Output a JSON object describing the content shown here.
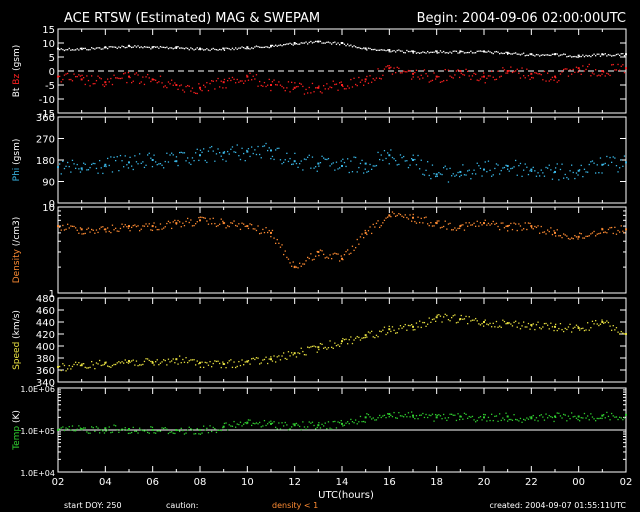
{
  "header": {
    "title": "ACE RTSW (Estimated) MAG & SWEPAM",
    "begin": "Begin: 2004-09-06 02:00:00UTC"
  },
  "footer": {
    "start_doy": "start DOY: 250",
    "caution": "caution:",
    "density_note": "density < 1",
    "created": "created: 2004-09-07 01:55:11UTC"
  },
  "colors": {
    "axis": "#ffffff",
    "bt": "#ffffff",
    "bz": "#ff2020",
    "phi": "#3ab8e8",
    "density": "#ff8c33",
    "speed": "#e8e040",
    "temp": "#30d030",
    "dash": "#ffffff"
  },
  "chart_data": {
    "type": "scatter",
    "xlabel": "UTC(hours)",
    "x_ticks": [
      "02",
      "04",
      "06",
      "08",
      "10",
      "12",
      "14",
      "16",
      "18",
      "20",
      "22",
      "00",
      "02"
    ],
    "xlim": [
      0,
      24
    ],
    "panels": [
      {
        "id": "mag",
        "ylabel_parts": [
          {
            "text": "Bt ",
            "color": "#ffffff"
          },
          {
            "text": "Bz",
            "color": "#ff2020"
          },
          {
            "text": " (gsm)",
            "color": "#ffffff"
          }
        ],
        "ylim": [
          -15,
          15
        ],
        "y_ticks": [
          "-15",
          "-10",
          "-5",
          "0",
          "5",
          "10",
          "15"
        ],
        "y_tick_values": [
          -15,
          -10,
          -5,
          0,
          5,
          10,
          15
        ],
        "scale": "linear",
        "reference_line": 0,
        "series": [
          {
            "name": "Bt",
            "color": "#ffffff",
            "x": [
              0,
              1,
              2,
              3,
              4,
              5,
              6,
              7,
              8,
              9,
              10,
              11,
              12,
              13,
              14,
              15,
              16,
              17,
              18,
              19,
              20,
              21,
              22,
              23,
              24
            ],
            "y": [
              8,
              8,
              8.5,
              9,
              8.5,
              8.5,
              8,
              8,
              8.5,
              9,
              10,
              10.5,
              10,
              8,
              7.5,
              7,
              7,
              7,
              7,
              6.5,
              6,
              6,
              5.5,
              6,
              6
            ]
          },
          {
            "name": "Bz",
            "color": "#ff2020",
            "x": [
              0,
              1,
              2,
              3,
              4,
              5,
              6,
              7,
              8,
              9,
              10,
              11,
              12,
              13,
              14,
              15,
              16,
              17,
              18,
              19,
              20,
              21,
              22,
              23,
              24
            ],
            "y": [
              -2,
              -3,
              -4,
              -2,
              -3,
              -5,
              -6,
              -4,
              -2,
              -5,
              -6,
              -6,
              -5,
              -3,
              1,
              -1,
              -2,
              0,
              -2,
              0,
              -1,
              -2,
              1,
              0,
              1
            ]
          }
        ]
      },
      {
        "id": "phi",
        "ylabel_parts": [
          {
            "text": "Phi",
            "color": "#3ab8e8"
          },
          {
            "text": " (gsm)",
            "color": "#ffffff"
          }
        ],
        "ylim": [
          0,
          360
        ],
        "y_ticks": [
          "0",
          "90",
          "180",
          "270",
          "360"
        ],
        "y_tick_values": [
          0,
          90,
          180,
          270,
          360
        ],
        "scale": "linear",
        "series": [
          {
            "name": "Phi",
            "color": "#3ab8e8",
            "x": [
              0,
              1,
              2,
              3,
              4,
              5,
              6,
              7,
              8,
              9,
              10,
              11,
              12,
              13,
              14,
              15,
              16,
              17,
              18,
              19,
              20,
              21,
              22,
              23,
              24
            ],
            "y": [
              150,
              145,
              160,
              170,
              180,
              175,
              200,
              210,
              215,
              220,
              175,
              165,
              155,
              165,
              200,
              180,
              120,
              130,
              140,
              155,
              140,
              130,
              135,
              160,
              170
            ]
          }
        ]
      },
      {
        "id": "density",
        "ylabel_parts": [
          {
            "text": "Density",
            "color": "#ff8c33"
          },
          {
            "text": " (/cm3)",
            "color": "#ffffff"
          }
        ],
        "ylim": [
          1,
          10
        ],
        "y_ticks": [
          "1",
          "10"
        ],
        "y_tick_values": [
          1,
          10
        ],
        "scale": "log",
        "series": [
          {
            "name": "Density",
            "color": "#ff8c33",
            "x": [
              0,
              1,
              2,
              3,
              4,
              5,
              6,
              7,
              8,
              9,
              10,
              11,
              12,
              13,
              14,
              15,
              16,
              17,
              18,
              19,
              20,
              21,
              22,
              23,
              24
            ],
            "y": [
              6,
              5.5,
              5.5,
              6,
              6,
              6.5,
              7,
              6.5,
              6,
              5,
              2,
              3,
              2.5,
              5,
              8,
              7.5,
              6.5,
              6,
              6.5,
              6,
              6,
              5,
              4.5,
              5.5,
              5.5
            ]
          }
        ]
      },
      {
        "id": "speed",
        "ylabel_parts": [
          {
            "text": "Speed",
            "color": "#e8e040"
          },
          {
            "text": " (km/s)",
            "color": "#ffffff"
          }
        ],
        "ylim": [
          340,
          480
        ],
        "y_ticks": [
          "340",
          "360",
          "380",
          "400",
          "420",
          "440",
          "460",
          "480"
        ],
        "y_tick_values": [
          340,
          360,
          380,
          400,
          420,
          440,
          460,
          480
        ],
        "scale": "linear",
        "series": [
          {
            "name": "Speed",
            "color": "#e8e040",
            "x": [
              0,
              1,
              2,
              3,
              4,
              5,
              6,
              7,
              8,
              9,
              10,
              11,
              12,
              13,
              14,
              15,
              16,
              17,
              18,
              19,
              20,
              21,
              22,
              23,
              24
            ],
            "y": [
              365,
              368,
              372,
              375,
              372,
              378,
              372,
              370,
              374,
              378,
              388,
              398,
              408,
              418,
              428,
              432,
              448,
              445,
              440,
              438,
              435,
              432,
              430,
              440,
              420
            ]
          }
        ]
      },
      {
        "id": "temp",
        "ylabel_parts": [
          {
            "text": "Temp",
            "color": "#30d030"
          },
          {
            "text": " (K)",
            "color": "#ffffff"
          }
        ],
        "ylim": [
          10000,
          1000000
        ],
        "y_ticks": [
          "1.0E+04",
          "1.0E+05",
          "1.0E+06"
        ],
        "y_tick_values": [
          10000,
          100000,
          1000000
        ],
        "scale": "log",
        "reference_line": 100000,
        "series": [
          {
            "name": "Temp",
            "color": "#30d030",
            "x": [
              0,
              1,
              2,
              3,
              4,
              5,
              6,
              7,
              8,
              9,
              10,
              11,
              12,
              13,
              14,
              15,
              16,
              17,
              18,
              19,
              20,
              21,
              22,
              23,
              24
            ],
            "y": [
              100000,
              105000,
              110000,
              105000,
              100000,
              100000,
              100000,
              120000,
              150000,
              140000,
              130000,
              130000,
              140000,
              200000,
              240000,
              220000,
              200000,
              210000,
              200000,
              210000,
              190000,
              210000,
              210000,
              220000,
              230000
            ]
          }
        ]
      }
    ]
  }
}
